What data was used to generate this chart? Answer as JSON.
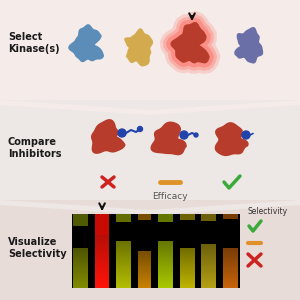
{
  "background_top": "#f5ebe8",
  "background_mid": "#ede8e5",
  "background_bot": "#e8dcd8",
  "section1_label": "Select\nKinase(s)",
  "section2_label": "Compare\nInhibitors",
  "section3_label": "Visualize\nSelectivity",
  "efficacy_label": "Efficacy",
  "selectivity_label": "Selectivity",
  "kinase_colors": [
    "#5b8db8",
    "#d4aa4e",
    "#b83c2c",
    "#6b6fa8"
  ],
  "inhibitor_color": "#b83c2c",
  "check_color": "#3aaa3a",
  "cross_color": "#cc2222",
  "dash_color": "#e0922a",
  "label_fontsize": 7,
  "title_fontweight": "bold",
  "fig_w": 3.0,
  "fig_h": 3.0,
  "dpi": 100
}
